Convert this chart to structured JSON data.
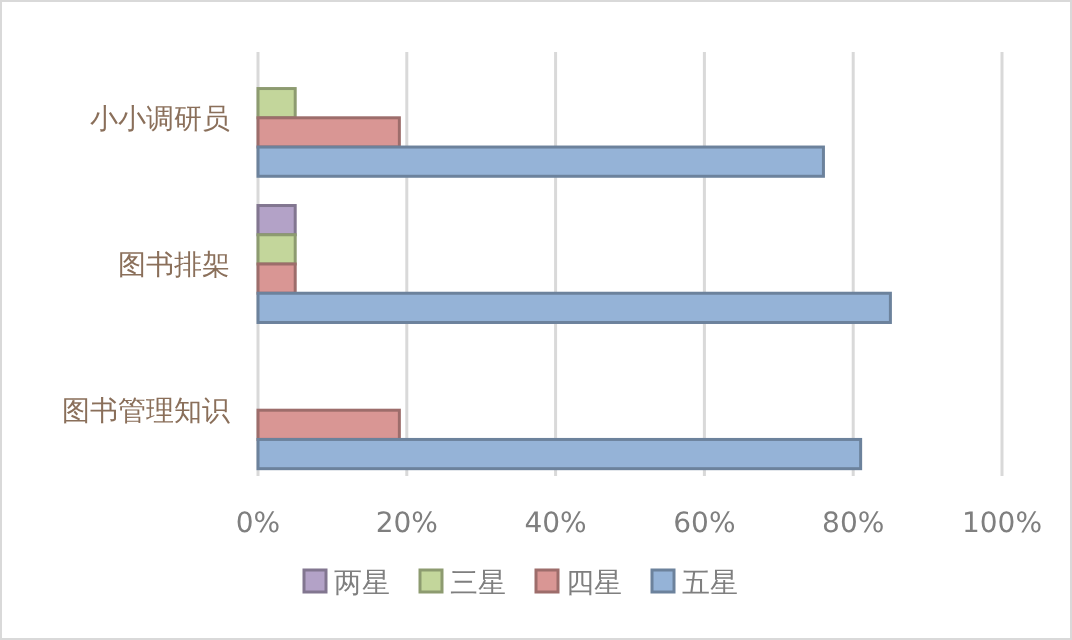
{
  "chart_data": {
    "type": "bar",
    "orientation": "horizontal",
    "categories": [
      "小小调研员",
      "图书排架",
      "图书管理知识"
    ],
    "series": [
      {
        "name": "两星",
        "color": "#b3a2c7",
        "values": [
          0,
          5,
          0
        ]
      },
      {
        "name": "三星",
        "color": "#c3d69b",
        "values": [
          5,
          5,
          0
        ]
      },
      {
        "name": "四星",
        "color": "#d99694",
        "values": [
          19,
          5,
          19
        ]
      },
      {
        "name": "五星",
        "color": "#95b3d7",
        "values": [
          76,
          85,
          81
        ]
      }
    ],
    "xlim": [
      0,
      100
    ],
    "xticks": [
      {
        "value": 0,
        "label": "0%"
      },
      {
        "value": 20,
        "label": "20%"
      },
      {
        "value": 40,
        "label": "40%"
      },
      {
        "value": 60,
        "label": "60%"
      },
      {
        "value": 80,
        "label": "80%"
      },
      {
        "value": 100,
        "label": "100%"
      }
    ],
    "grid": "x",
    "legend": "bottom"
  }
}
